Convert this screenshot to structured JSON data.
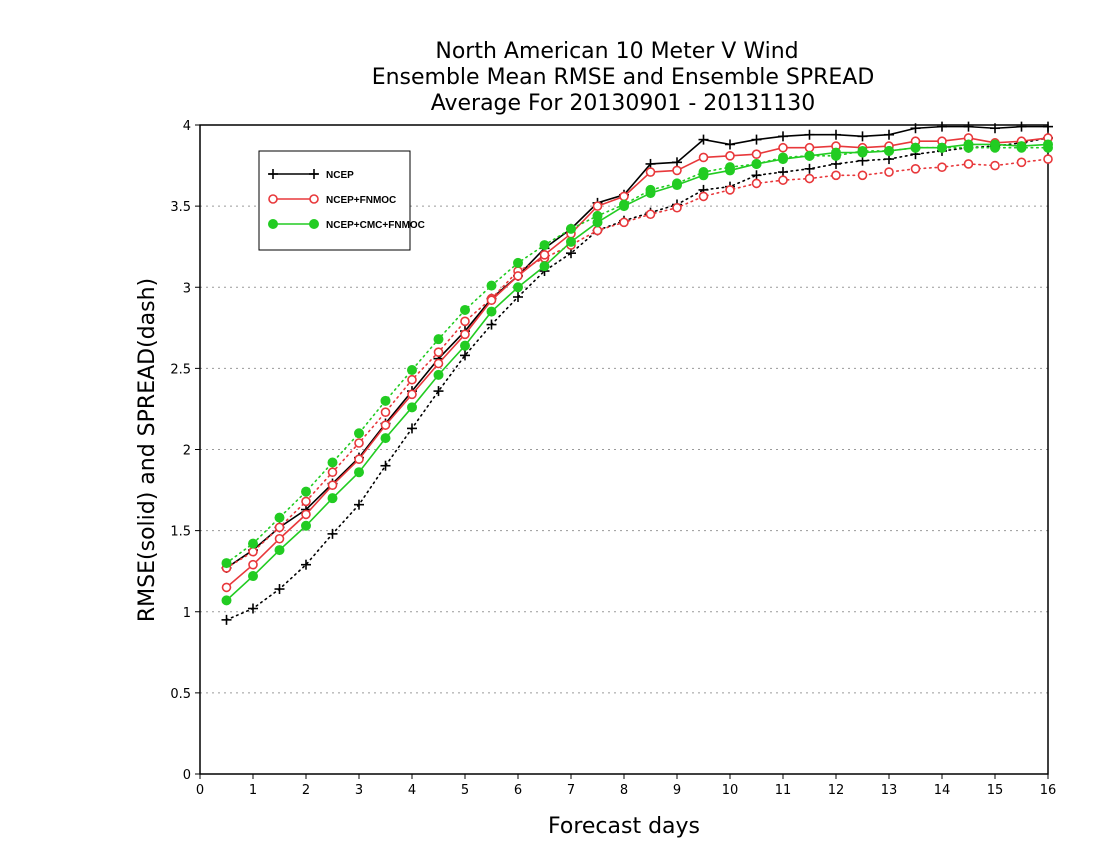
{
  "chart_data": {
    "type": "line",
    "title": [
      "North American 10 Meter V Wind",
      "Ensemble Mean RMSE and Ensemble SPREAD",
      "Average For 20130901 - 20131130"
    ],
    "xlabel": "Forecast days",
    "ylabel": "RMSE(solid) and SPREAD(dash)",
    "xlim": [
      0,
      16
    ],
    "ylim": [
      0,
      4
    ],
    "xticks": [
      "0",
      "1",
      "2",
      "3",
      "4",
      "5",
      "6",
      "7",
      "8",
      "9",
      "10",
      "11",
      "12",
      "13",
      "14",
      "15",
      "16"
    ],
    "yticks": [
      "0",
      "0.5",
      "1",
      "1.5",
      "2",
      "2.5",
      "3",
      "3.5",
      "4"
    ],
    "grid": true,
    "legend_position": "top-left",
    "x": [
      0.5,
      1,
      1.5,
      2,
      2.5,
      3,
      3.5,
      4,
      4.5,
      5,
      5.5,
      6,
      6.5,
      7,
      7.5,
      8,
      8.5,
      9,
      9.5,
      10,
      10.5,
      11,
      11.5,
      12,
      12.5,
      13,
      13.5,
      14,
      14.5,
      15,
      15.5,
      16
    ],
    "series": [
      {
        "name": "NCEP",
        "color": "#000000",
        "marker": "plus",
        "rmse": [
          1.27,
          1.38,
          1.52,
          1.63,
          1.79,
          1.95,
          2.16,
          2.36,
          2.56,
          2.73,
          2.93,
          3.07,
          3.24,
          3.36,
          3.52,
          3.57,
          3.76,
          3.77,
          3.91,
          3.88,
          3.91,
          3.93,
          3.94,
          3.94,
          3.93,
          3.94,
          3.98,
          3.99,
          3.99,
          3.98,
          3.99,
          3.99
        ],
        "spread": [
          0.95,
          1.02,
          1.14,
          1.29,
          1.48,
          1.66,
          1.9,
          2.13,
          2.36,
          2.58,
          2.77,
          2.94,
          3.1,
          3.21,
          3.35,
          3.41,
          3.46,
          3.51,
          3.6,
          3.62,
          3.69,
          3.71,
          3.73,
          3.76,
          3.78,
          3.79,
          3.82,
          3.84,
          3.86,
          3.87,
          3.89,
          3.92
        ]
      },
      {
        "name": "NCEP+FNMOC",
        "color": "#e8383b",
        "marker": "open-circle",
        "rmse": [
          1.15,
          1.29,
          1.45,
          1.6,
          1.78,
          1.94,
          2.15,
          2.34,
          2.53,
          2.71,
          2.92,
          3.07,
          3.2,
          3.33,
          3.5,
          3.56,
          3.71,
          3.72,
          3.8,
          3.81,
          3.82,
          3.86,
          3.86,
          3.87,
          3.86,
          3.87,
          3.9,
          3.9,
          3.92,
          3.89,
          3.9,
          3.92
        ],
        "spread": [
          1.27,
          1.37,
          1.52,
          1.68,
          1.86,
          2.04,
          2.23,
          2.43,
          2.6,
          2.79,
          2.93,
          3.1,
          3.18,
          3.26,
          3.35,
          3.4,
          3.45,
          3.49,
          3.56,
          3.6,
          3.64,
          3.66,
          3.67,
          3.69,
          3.69,
          3.71,
          3.73,
          3.74,
          3.76,
          3.75,
          3.77,
          3.79
        ]
      },
      {
        "name": "NCEP+CMC+FNMOC",
        "color": "#22cc22",
        "marker": "filled-circle",
        "rmse": [
          1.07,
          1.22,
          1.38,
          1.53,
          1.7,
          1.86,
          2.07,
          2.26,
          2.46,
          2.64,
          2.85,
          3.0,
          3.13,
          3.28,
          3.4,
          3.5,
          3.58,
          3.63,
          3.69,
          3.72,
          3.76,
          3.79,
          3.81,
          3.83,
          3.83,
          3.84,
          3.86,
          3.86,
          3.88,
          3.88,
          3.87,
          3.88
        ],
        "spread": [
          1.3,
          1.42,
          1.58,
          1.74,
          1.92,
          2.1,
          2.3,
          2.49,
          2.68,
          2.86,
          3.01,
          3.15,
          3.26,
          3.36,
          3.44,
          3.51,
          3.6,
          3.64,
          3.71,
          3.74,
          3.76,
          3.8,
          3.81,
          3.81,
          3.84,
          3.84,
          3.86,
          3.86,
          3.86,
          3.86,
          3.86,
          3.86
        ]
      }
    ]
  }
}
